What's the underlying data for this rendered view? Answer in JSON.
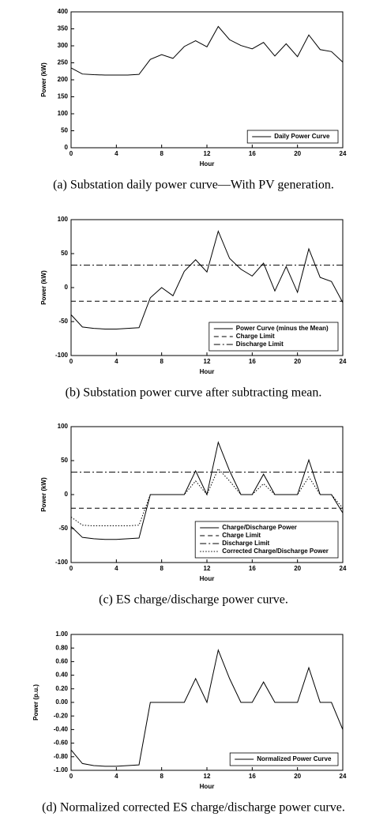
{
  "chart_data": [
    {
      "type": "line",
      "title": "(a) Substation daily power curve—With PV generation.",
      "xlabel": "Hour",
      "ylabel": "Power (kW)",
      "x": [
        0,
        1,
        2,
        3,
        4,
        5,
        6,
        7,
        8,
        9,
        10,
        11,
        12,
        13,
        14,
        15,
        16,
        17,
        18,
        19,
        20,
        21,
        22,
        23,
        24
      ],
      "xlim": [
        0,
        24
      ],
      "xticks": [
        0,
        4,
        8,
        12,
        16,
        20,
        24
      ],
      "ylim": [
        0,
        400
      ],
      "yticks": [
        0,
        50,
        100,
        150,
        200,
        250,
        300,
        350,
        400
      ],
      "legend": "lower right",
      "series": [
        {
          "name": "Daily Power Curve",
          "color": "#000000",
          "style": "solid",
          "values": [
            235,
            217,
            215,
            214,
            214,
            214,
            216,
            260,
            274,
            263,
            298,
            315,
            297,
            357,
            318,
            301,
            291,
            310,
            270,
            306,
            268,
            332,
            289,
            283,
            252
          ]
        }
      ]
    },
    {
      "type": "line",
      "title": "(b) Substation power curve after subtracting mean.",
      "xlabel": "Hour",
      "ylabel": "Power (kW)",
      "x": [
        0,
        1,
        2,
        3,
        4,
        5,
        6,
        7,
        8,
        9,
        10,
        11,
        12,
        13,
        14,
        15,
        16,
        17,
        18,
        19,
        20,
        21,
        22,
        23,
        24
      ],
      "xlim": [
        0,
        24
      ],
      "xticks": [
        0,
        4,
        8,
        12,
        16,
        20,
        24
      ],
      "ylim": [
        -100,
        100
      ],
      "yticks": [
        -100,
        -50,
        0,
        50,
        100
      ],
      "legend": "lower right",
      "series": [
        {
          "name": "Power Curve (minus the Mean)",
          "color": "#000000",
          "style": "solid",
          "values": [
            -40,
            -58,
            -60,
            -61,
            -61,
            -60,
            -59,
            -15,
            0,
            -12,
            24,
            41,
            23,
            83,
            43,
            27,
            17,
            36,
            -5,
            31,
            -7,
            57,
            15,
            9,
            -22
          ]
        },
        {
          "name": "Charge Limit",
          "color": "#000000",
          "style": "dashed",
          "value": -20
        },
        {
          "name": "Discharge Limit",
          "color": "#000000",
          "style": "dashdot",
          "value": 33
        }
      ]
    },
    {
      "type": "line",
      "title": "(c) ES charge/discharge power curve.",
      "xlabel": "Hour",
      "ylabel": "Power (kW)",
      "x": [
        0,
        1,
        2,
        3,
        4,
        5,
        6,
        7,
        8,
        9,
        10,
        11,
        12,
        13,
        14,
        15,
        16,
        17,
        18,
        19,
        20,
        21,
        22,
        23,
        24
      ],
      "xlim": [
        0,
        24
      ],
      "xticks": [
        0,
        4,
        8,
        12,
        16,
        20,
        24
      ],
      "ylim": [
        -100,
        100
      ],
      "yticks": [
        -100,
        -50,
        0,
        50,
        100
      ],
      "legend": "lower right",
      "series": [
        {
          "name": "Charge/Discharge Power",
          "color": "#000000",
          "style": "solid",
          "values": [
            -47,
            -63,
            -65,
            -66,
            -66,
            -65,
            -64,
            0,
            0,
            0,
            0,
            35,
            0,
            77,
            35,
            0,
            0,
            30,
            0,
            0,
            0,
            51,
            0,
            0,
            -27
          ]
        },
        {
          "name": "Charge Limit",
          "color": "#000000",
          "style": "dashed",
          "value": -20
        },
        {
          "name": "Discharge Limit",
          "color": "#000000",
          "style": "dashdot",
          "value": 33
        },
        {
          "name": "Corrected Charge/Discharge Power",
          "color": "#000000",
          "style": "dotted",
          "values": [
            -33,
            -45,
            -46,
            -46,
            -46,
            -46,
            -45,
            0,
            0,
            0,
            0,
            20,
            0,
            38,
            20,
            0,
            0,
            16,
            0,
            0,
            0,
            26,
            0,
            0,
            -20
          ]
        }
      ]
    },
    {
      "type": "line",
      "title": "(d) Normalized corrected ES charge/discharge power curve.",
      "xlabel": "Hour",
      "ylabel": "Power (p.u.)",
      "x": [
        0,
        1,
        2,
        3,
        4,
        5,
        6,
        7,
        8,
        9,
        10,
        11,
        12,
        13,
        14,
        15,
        16,
        17,
        18,
        19,
        20,
        21,
        22,
        23,
        24
      ],
      "xlim": [
        0,
        24
      ],
      "xticks": [
        0,
        4,
        8,
        12,
        16,
        20,
        24
      ],
      "ylim": [
        -1,
        1
      ],
      "yticks": [
        {
          "value": -1,
          "label": "-1.00"
        },
        {
          "value": -0.8,
          "label": "-0.80"
        },
        {
          "value": -0.6,
          "label": "-0.60"
        },
        {
          "value": -0.4,
          "label": "-0.40"
        },
        {
          "value": -0.2,
          "label": "-0.20"
        },
        {
          "value": 0,
          "label": "0.00"
        },
        {
          "value": 0.2,
          "label": "0.20"
        },
        {
          "value": 0.4,
          "label": "0.40"
        },
        {
          "value": 0.6,
          "label": "0.60"
        },
        {
          "value": 0.8,
          "label": "0.80"
        },
        {
          "value": 1,
          "label": "1.00"
        }
      ],
      "legend": "lower right",
      "series": [
        {
          "name": "Normalized Power Curve",
          "color": "#000000",
          "style": "solid",
          "values": [
            -0.7,
            -0.9,
            -0.93,
            -0.94,
            -0.94,
            -0.93,
            -0.92,
            0,
            0,
            0,
            0,
            0.35,
            0,
            0.77,
            0.35,
            0,
            0,
            0.3,
            0,
            0,
            0,
            0.51,
            0,
            0,
            -0.4
          ]
        }
      ]
    }
  ]
}
